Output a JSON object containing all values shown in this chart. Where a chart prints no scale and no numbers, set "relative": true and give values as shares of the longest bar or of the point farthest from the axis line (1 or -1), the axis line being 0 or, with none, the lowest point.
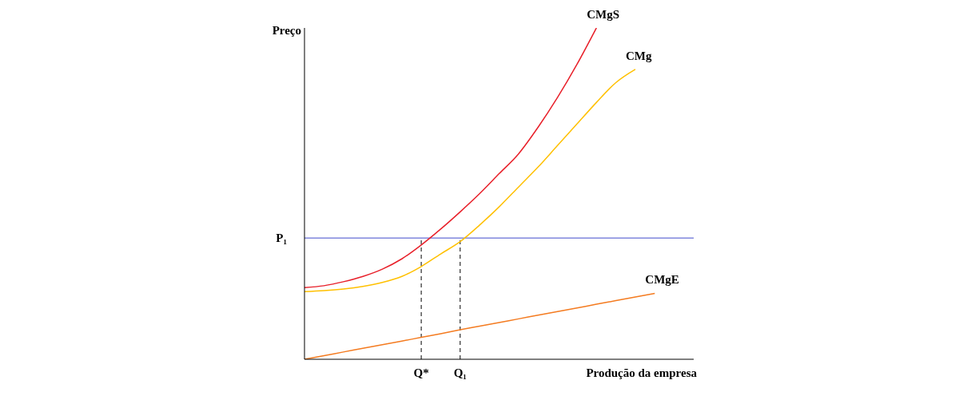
{
  "chart_data": {
    "type": "line",
    "relative": true,
    "xlabel": "Produção da empresa",
    "ylabel": "Preço",
    "categories": [
      null,
      null,
      null,
      null,
      null,
      null,
      "Q*",
      null,
      "Q₁",
      null,
      null,
      null,
      null,
      null,
      null,
      null,
      null,
      null,
      null,
      null,
      null
    ],
    "series": [
      {
        "name": "CMgS",
        "color": "#e8202a",
        "values": [
          0.216,
          0.222,
          0.234,
          0.25,
          0.272,
          0.303,
          0.345,
          0.393,
          0.445,
          0.5,
          0.56,
          0.62,
          0.7,
          0.79,
          0.89,
          1,
          null,
          null,
          null,
          null,
          null
        ]
      },
      {
        "name": "CMg",
        "color": "#ffc000",
        "values": [
          0.204,
          0.207,
          0.212,
          0.22,
          0.232,
          0.25,
          0.28,
          0.318,
          0.355,
          0.405,
          0.46,
          0.52,
          0.58,
          0.645,
          0.71,
          0.775,
          0.835,
          0.875,
          null,
          null,
          null
        ]
      },
      {
        "name": "CMgE",
        "color": "#f47b20",
        "values": [
          0,
          0.011,
          0.022,
          0.033,
          0.044,
          0.055,
          0.066,
          0.077,
          0.089,
          0.1,
          0.111,
          0.122,
          0.133,
          0.144,
          0.155,
          0.166,
          0.177,
          0.188,
          0.199,
          null,
          null
        ]
      }
    ],
    "ref_lines": [
      {
        "axis": "y",
        "value": 0.366,
        "label": "P₁",
        "color": "#3f48cc",
        "line_style": "solid"
      },
      {
        "axis": "x",
        "value": "Q*",
        "label": null,
        "color": "#000000",
        "line_style": "dashed"
      },
      {
        "axis": "x",
        "value": "Q₁",
        "label": null,
        "color": "#000000",
        "line_style": "dashed"
      }
    ],
    "marker": "none",
    "line_style": "solid",
    "legend": false
  }
}
